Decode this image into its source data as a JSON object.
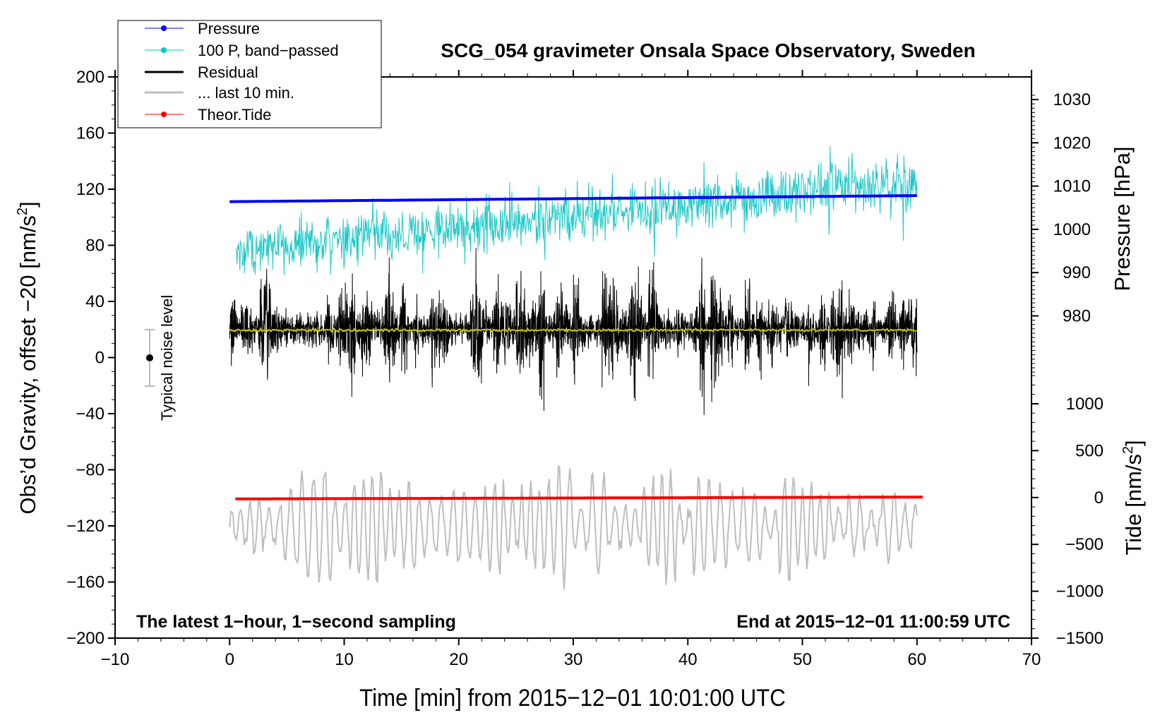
{
  "chart_data": {
    "type": "line",
    "title": "SCG_054 gravimeter Onsala Space Observatory, Sweden",
    "xlabel": "Time [min] from 2015−12−01 10:01:00 UTC",
    "ylabel": "Obs’d Gravity, offset −20 [nm/s",
    "ylabel_sup": "2",
    "ylabel_end": "]",
    "y2label": "Pressure [hPa]",
    "y3label": "Tide [nm/s",
    "y3label_sup": "2",
    "y3label_end": "]",
    "xlim": [
      -10,
      70
    ],
    "ylim": [
      -200,
      200
    ],
    "pressure_lim": [
      980,
      1030
    ],
    "tide_lim": [
      -1500,
      1000
    ],
    "xticks": [
      "−10",
      "0",
      "10",
      "20",
      "30",
      "40",
      "50",
      "60",
      "70"
    ],
    "xtick_values": [
      -10,
      0,
      10,
      20,
      30,
      40,
      50,
      60,
      70
    ],
    "yticks": [
      "200",
      "160",
      "120",
      "80",
      "40",
      "0",
      "−40",
      "−80",
      "−120",
      "−160",
      "−200"
    ],
    "ytick_values": [
      200,
      160,
      120,
      80,
      40,
      0,
      -40,
      -80,
      -120,
      -160,
      -200
    ],
    "pressure_ticks": [
      "1030",
      "1020",
      "1010",
      "1000",
      "990",
      "980"
    ],
    "pressure_tick_values": [
      1030,
      1020,
      1010,
      1000,
      990,
      980
    ],
    "tide_ticks": [
      "1000",
      "500",
      "0",
      "−500",
      "−1000",
      "−1500"
    ],
    "tide_tick_values": [
      1000,
      500,
      0,
      -500,
      -1000,
      -1500
    ],
    "legend": {
      "placement": "top-left",
      "entries": [
        {
          "label": "Pressure",
          "color": "#0000ff",
          "marker": true
        },
        {
          "label": "100 P, band−passed",
          "color": "#00c8c8",
          "marker": true
        },
        {
          "label": "Residual",
          "color": "#000000",
          "marker": false
        },
        {
          "label": "... last 10 min.",
          "color": "#bebebe",
          "marker": false
        },
        {
          "label": "Theor.Tide",
          "color": "#ff0000",
          "marker": true
        }
      ]
    },
    "annotations": {
      "left": "The latest 1−hour, 1−second sampling",
      "right": "End at 2015−12−01 11:00:59 UTC",
      "noise": "Typical noise level"
    },
    "noise_level": {
      "x": -7,
      "center": 0,
      "halfwidth": 20
    },
    "series": [
      {
        "name": "Pressure",
        "axis": "pressure",
        "x_range": [
          0,
          60
        ],
        "start": 1006.4,
        "end": 1007.8,
        "color": "#0000ff"
      },
      {
        "name": "100 P, band-passed",
        "axis": "gravity",
        "x_range": [
          0.5,
          60
        ],
        "start": 76,
        "end": 126,
        "noise": 9,
        "color": "#20c8c8"
      },
      {
        "name": "Residual",
        "axis": "gravity",
        "x_range": [
          0,
          60
        ],
        "mean": 20,
        "noise": 18,
        "color": "#000000"
      },
      {
        "name": "Residual smoothed",
        "axis": "gravity",
        "x_range": [
          0,
          60
        ],
        "mean": 19.5,
        "color": "#c8c800"
      },
      {
        "name": "... last 10 min.",
        "axis": "gravity",
        "x_range": [
          0,
          60
        ],
        "mean": -120,
        "amplitude": 35,
        "color": "#bebebe"
      },
      {
        "name": "Theor.Tide",
        "axis": "tide",
        "x_range": [
          0.5,
          60.5
        ],
        "start": -15,
        "end": 5,
        "color": "#ff0000"
      }
    ]
  }
}
